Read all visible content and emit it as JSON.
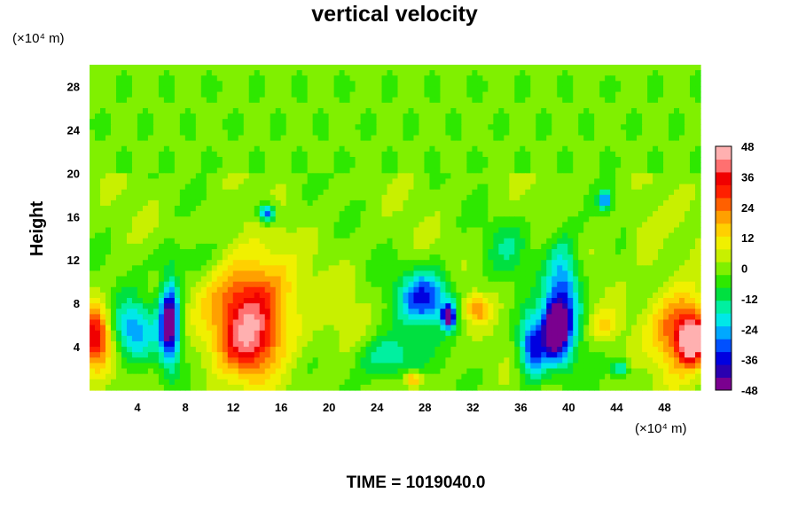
{
  "chart_data": {
    "type": "heatmap",
    "title": "vertical velocity",
    "ylabel": "Height",
    "x_unit": "(×10⁴ m)",
    "y_unit": "(×10⁴ m)",
    "footer": "TIME = 1019040.0",
    "x_range": [
      0,
      51
    ],
    "y_range": [
      0,
      30
    ],
    "x_ticks": [
      4,
      8,
      12,
      16,
      20,
      24,
      28,
      32,
      36,
      40,
      44,
      48
    ],
    "y_ticks": [
      4,
      8,
      12,
      16,
      20,
      24,
      28
    ],
    "colorbar": {
      "range": [
        -48,
        48
      ],
      "tick_values": [
        48,
        36,
        24,
        12,
        0,
        -12,
        -24,
        -36,
        -48
      ],
      "colors": [
        "#7a008f",
        "#2a00b0",
        "#0000e0",
        "#0050ff",
        "#00a8ff",
        "#00e8e8",
        "#00f0a0",
        "#00e040",
        "#2ee800",
        "#80f000",
        "#c8f000",
        "#f0f000",
        "#ffd000",
        "#ffa000",
        "#ff6000",
        "#ff2000",
        "#f00000",
        "#ff7070",
        "#ffb0b0"
      ]
    },
    "features": [
      {
        "x": 0.5,
        "y": 5.0,
        "rx": 1.6,
        "ry": 3.0,
        "value": 40
      },
      {
        "x": 3.5,
        "y": 5.5,
        "rx": 2.3,
        "ry": 3.0,
        "value": -26
      },
      {
        "x": 6.7,
        "y": 6.2,
        "rx": 0.9,
        "ry": 4.2,
        "value": -48
      },
      {
        "x": 13.5,
        "y": 7.0,
        "rx": 3.6,
        "ry": 5.6,
        "value": 40
      },
      {
        "x": 13.2,
        "y": 4.0,
        "rx": 2.0,
        "ry": 2.6,
        "value": 12
      },
      {
        "x": 14.8,
        "y": 16.3,
        "rx": 0.8,
        "ry": 1.0,
        "value": -34
      },
      {
        "x": 25.0,
        "y": 3.0,
        "rx": 3.0,
        "ry": 2.4,
        "value": -18
      },
      {
        "x": 28.0,
        "y": 8.5,
        "rx": 2.4,
        "ry": 2.8,
        "value": -34
      },
      {
        "x": 30.0,
        "y": 6.8,
        "rx": 0.6,
        "ry": 1.2,
        "value": -48
      },
      {
        "x": 32.3,
        "y": 7.5,
        "rx": 1.2,
        "ry": 1.4,
        "value": 22
      },
      {
        "x": 27.0,
        "y": 1.0,
        "rx": 0.8,
        "ry": 0.8,
        "value": 24
      },
      {
        "x": 37.0,
        "y": 4.0,
        "rx": 1.3,
        "ry": 3.2,
        "value": -36
      },
      {
        "x": 39.5,
        "y": 8.0,
        "rx": 1.6,
        "ry": 6.0,
        "value": -34
      },
      {
        "x": 38.8,
        "y": 5.5,
        "rx": 1.0,
        "ry": 2.5,
        "value": -44
      },
      {
        "x": 43.0,
        "y": 6.0,
        "rx": 1.3,
        "ry": 1.5,
        "value": 12
      },
      {
        "x": 44.3,
        "y": 2.0,
        "rx": 0.7,
        "ry": 0.8,
        "value": -22
      },
      {
        "x": 43.0,
        "y": 17.5,
        "rx": 0.6,
        "ry": 0.9,
        "value": -28
      },
      {
        "x": 49.5,
        "y": 5.5,
        "rx": 2.5,
        "ry": 4.0,
        "value": 34
      },
      {
        "x": 50.3,
        "y": 4.5,
        "rx": 1.0,
        "ry": 2.0,
        "value": 44
      },
      {
        "x": 8.0,
        "y": 12.0,
        "rx": 3.0,
        "ry": 2.0,
        "value": -8
      },
      {
        "x": 21.5,
        "y": 7.0,
        "rx": 2.0,
        "ry": 5.5,
        "value": 4
      },
      {
        "x": 35.0,
        "y": 13.0,
        "rx": 2.0,
        "ry": 3.0,
        "value": -10
      },
      {
        "x": 46.5,
        "y": 14.0,
        "rx": 1.5,
        "ry": 3.0,
        "value": 8
      }
    ],
    "upper_layer": {
      "from_height": 20,
      "value": -2
    }
  }
}
